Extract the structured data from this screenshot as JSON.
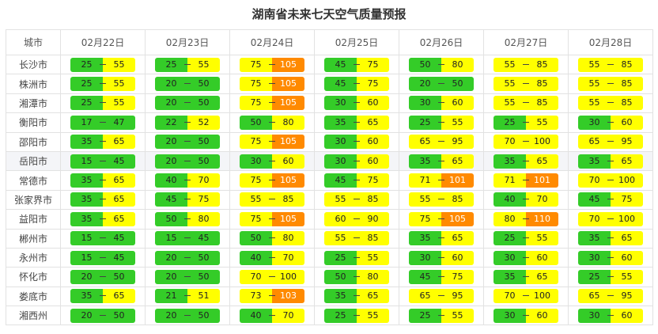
{
  "title": "湖南省未来七天空气质量预报",
  "header": [
    "城市",
    "02月22日",
    "02月23日",
    "02月24日",
    "02月25日",
    "02月26日",
    "02月27日",
    "02月28日"
  ],
  "colors": {
    "green": "#34cc28",
    "yellow": "#ffff00",
    "orange": "#ff8a00"
  },
  "rows": [
    {
      "city": "长沙市",
      "days": [
        [
          "25",
          "55"
        ],
        [
          "25",
          "55"
        ],
        [
          "75",
          "105"
        ],
        [
          "45",
          "75"
        ],
        [
          "50",
          "80"
        ],
        [
          "55",
          "85"
        ],
        [
          "55",
          "85"
        ]
      ]
    },
    {
      "city": "株洲市",
      "days": [
        [
          "25",
          "55"
        ],
        [
          "20",
          "50"
        ],
        [
          "75",
          "105"
        ],
        [
          "45",
          "75"
        ],
        [
          "20",
          "50"
        ],
        [
          "55",
          "85"
        ],
        [
          "55",
          "85"
        ]
      ]
    },
    {
      "city": "湘潭市",
      "days": [
        [
          "25",
          "55"
        ],
        [
          "20",
          "50"
        ],
        [
          "75",
          "105"
        ],
        [
          "30",
          "60"
        ],
        [
          "30",
          "60"
        ],
        [
          "55",
          "85"
        ],
        [
          "55",
          "85"
        ]
      ]
    },
    {
      "city": "衡阳市",
      "days": [
        [
          "17",
          "47"
        ],
        [
          "22",
          "52"
        ],
        [
          "50",
          "80"
        ],
        [
          "35",
          "65"
        ],
        [
          "25",
          "55"
        ],
        [
          "25",
          "55"
        ],
        [
          "30",
          "60"
        ]
      ]
    },
    {
      "city": "邵阳市",
      "days": [
        [
          "35",
          "65"
        ],
        [
          "20",
          "50"
        ],
        [
          "75",
          "105"
        ],
        [
          "30",
          "60"
        ],
        [
          "65",
          "95"
        ],
        [
          "70",
          "100"
        ],
        [
          "65",
          "95"
        ]
      ]
    },
    {
      "city": "岳阳市",
      "days": [
        [
          "15",
          "45"
        ],
        [
          "20",
          "50"
        ],
        [
          "30",
          "60"
        ],
        [
          "30",
          "60"
        ],
        [
          "35",
          "65"
        ],
        [
          "35",
          "65"
        ],
        [
          "35",
          "65"
        ]
      ]
    },
    {
      "city": "常德市",
      "days": [
        [
          "35",
          "65"
        ],
        [
          "40",
          "70"
        ],
        [
          "75",
          "105"
        ],
        [
          "45",
          "75"
        ],
        [
          "71",
          "101"
        ],
        [
          "71",
          "101"
        ],
        [
          "70",
          "100"
        ]
      ]
    },
    {
      "city": "张家界市",
      "days": [
        [
          "35",
          "65"
        ],
        [
          "45",
          "75"
        ],
        [
          "55",
          "85"
        ],
        [
          "55",
          "85"
        ],
        [
          "55",
          "85"
        ],
        [
          "40",
          "70"
        ],
        [
          "45",
          "75"
        ]
      ]
    },
    {
      "city": "益阳市",
      "days": [
        [
          "35",
          "65"
        ],
        [
          "50",
          "80"
        ],
        [
          "75",
          "105"
        ],
        [
          "60",
          "90"
        ],
        [
          "75",
          "105"
        ],
        [
          "80",
          "110"
        ],
        [
          "70",
          "100"
        ]
      ]
    },
    {
      "city": "郴州市",
      "days": [
        [
          "15",
          "45"
        ],
        [
          "15",
          "45"
        ],
        [
          "50",
          "80"
        ],
        [
          "55",
          "85"
        ],
        [
          "35",
          "65"
        ],
        [
          "25",
          "55"
        ],
        [
          "35",
          "65"
        ]
      ]
    },
    {
      "city": "永州市",
      "days": [
        [
          "15",
          "45"
        ],
        [
          "20",
          "50"
        ],
        [
          "40",
          "70"
        ],
        [
          "25",
          "55"
        ],
        [
          "30",
          "60"
        ],
        [
          "30",
          "60"
        ],
        [
          "30",
          "60"
        ]
      ]
    },
    {
      "city": "怀化市",
      "days": [
        [
          "20",
          "50"
        ],
        [
          "20",
          "50"
        ],
        [
          "70",
          "100"
        ],
        [
          "50",
          "80"
        ],
        [
          "45",
          "75"
        ],
        [
          "35",
          "65"
        ],
        [
          "25",
          "55"
        ]
      ]
    },
    {
      "city": "娄底市",
      "days": [
        [
          "35",
          "65"
        ],
        [
          "21",
          "51"
        ],
        [
          "73",
          "103"
        ],
        [
          "35",
          "65"
        ],
        [
          "65",
          "95"
        ],
        [
          "70",
          "100"
        ],
        [
          "65",
          "95"
        ]
      ]
    },
    {
      "city": "湘西州",
      "days": [
        [
          "20",
          "50"
        ],
        [
          "20",
          "50"
        ],
        [
          "40",
          "70"
        ],
        [
          "25",
          "55"
        ],
        [
          "25",
          "55"
        ],
        [
          "30",
          "60"
        ],
        [
          "30",
          "60"
        ]
      ]
    }
  ]
}
